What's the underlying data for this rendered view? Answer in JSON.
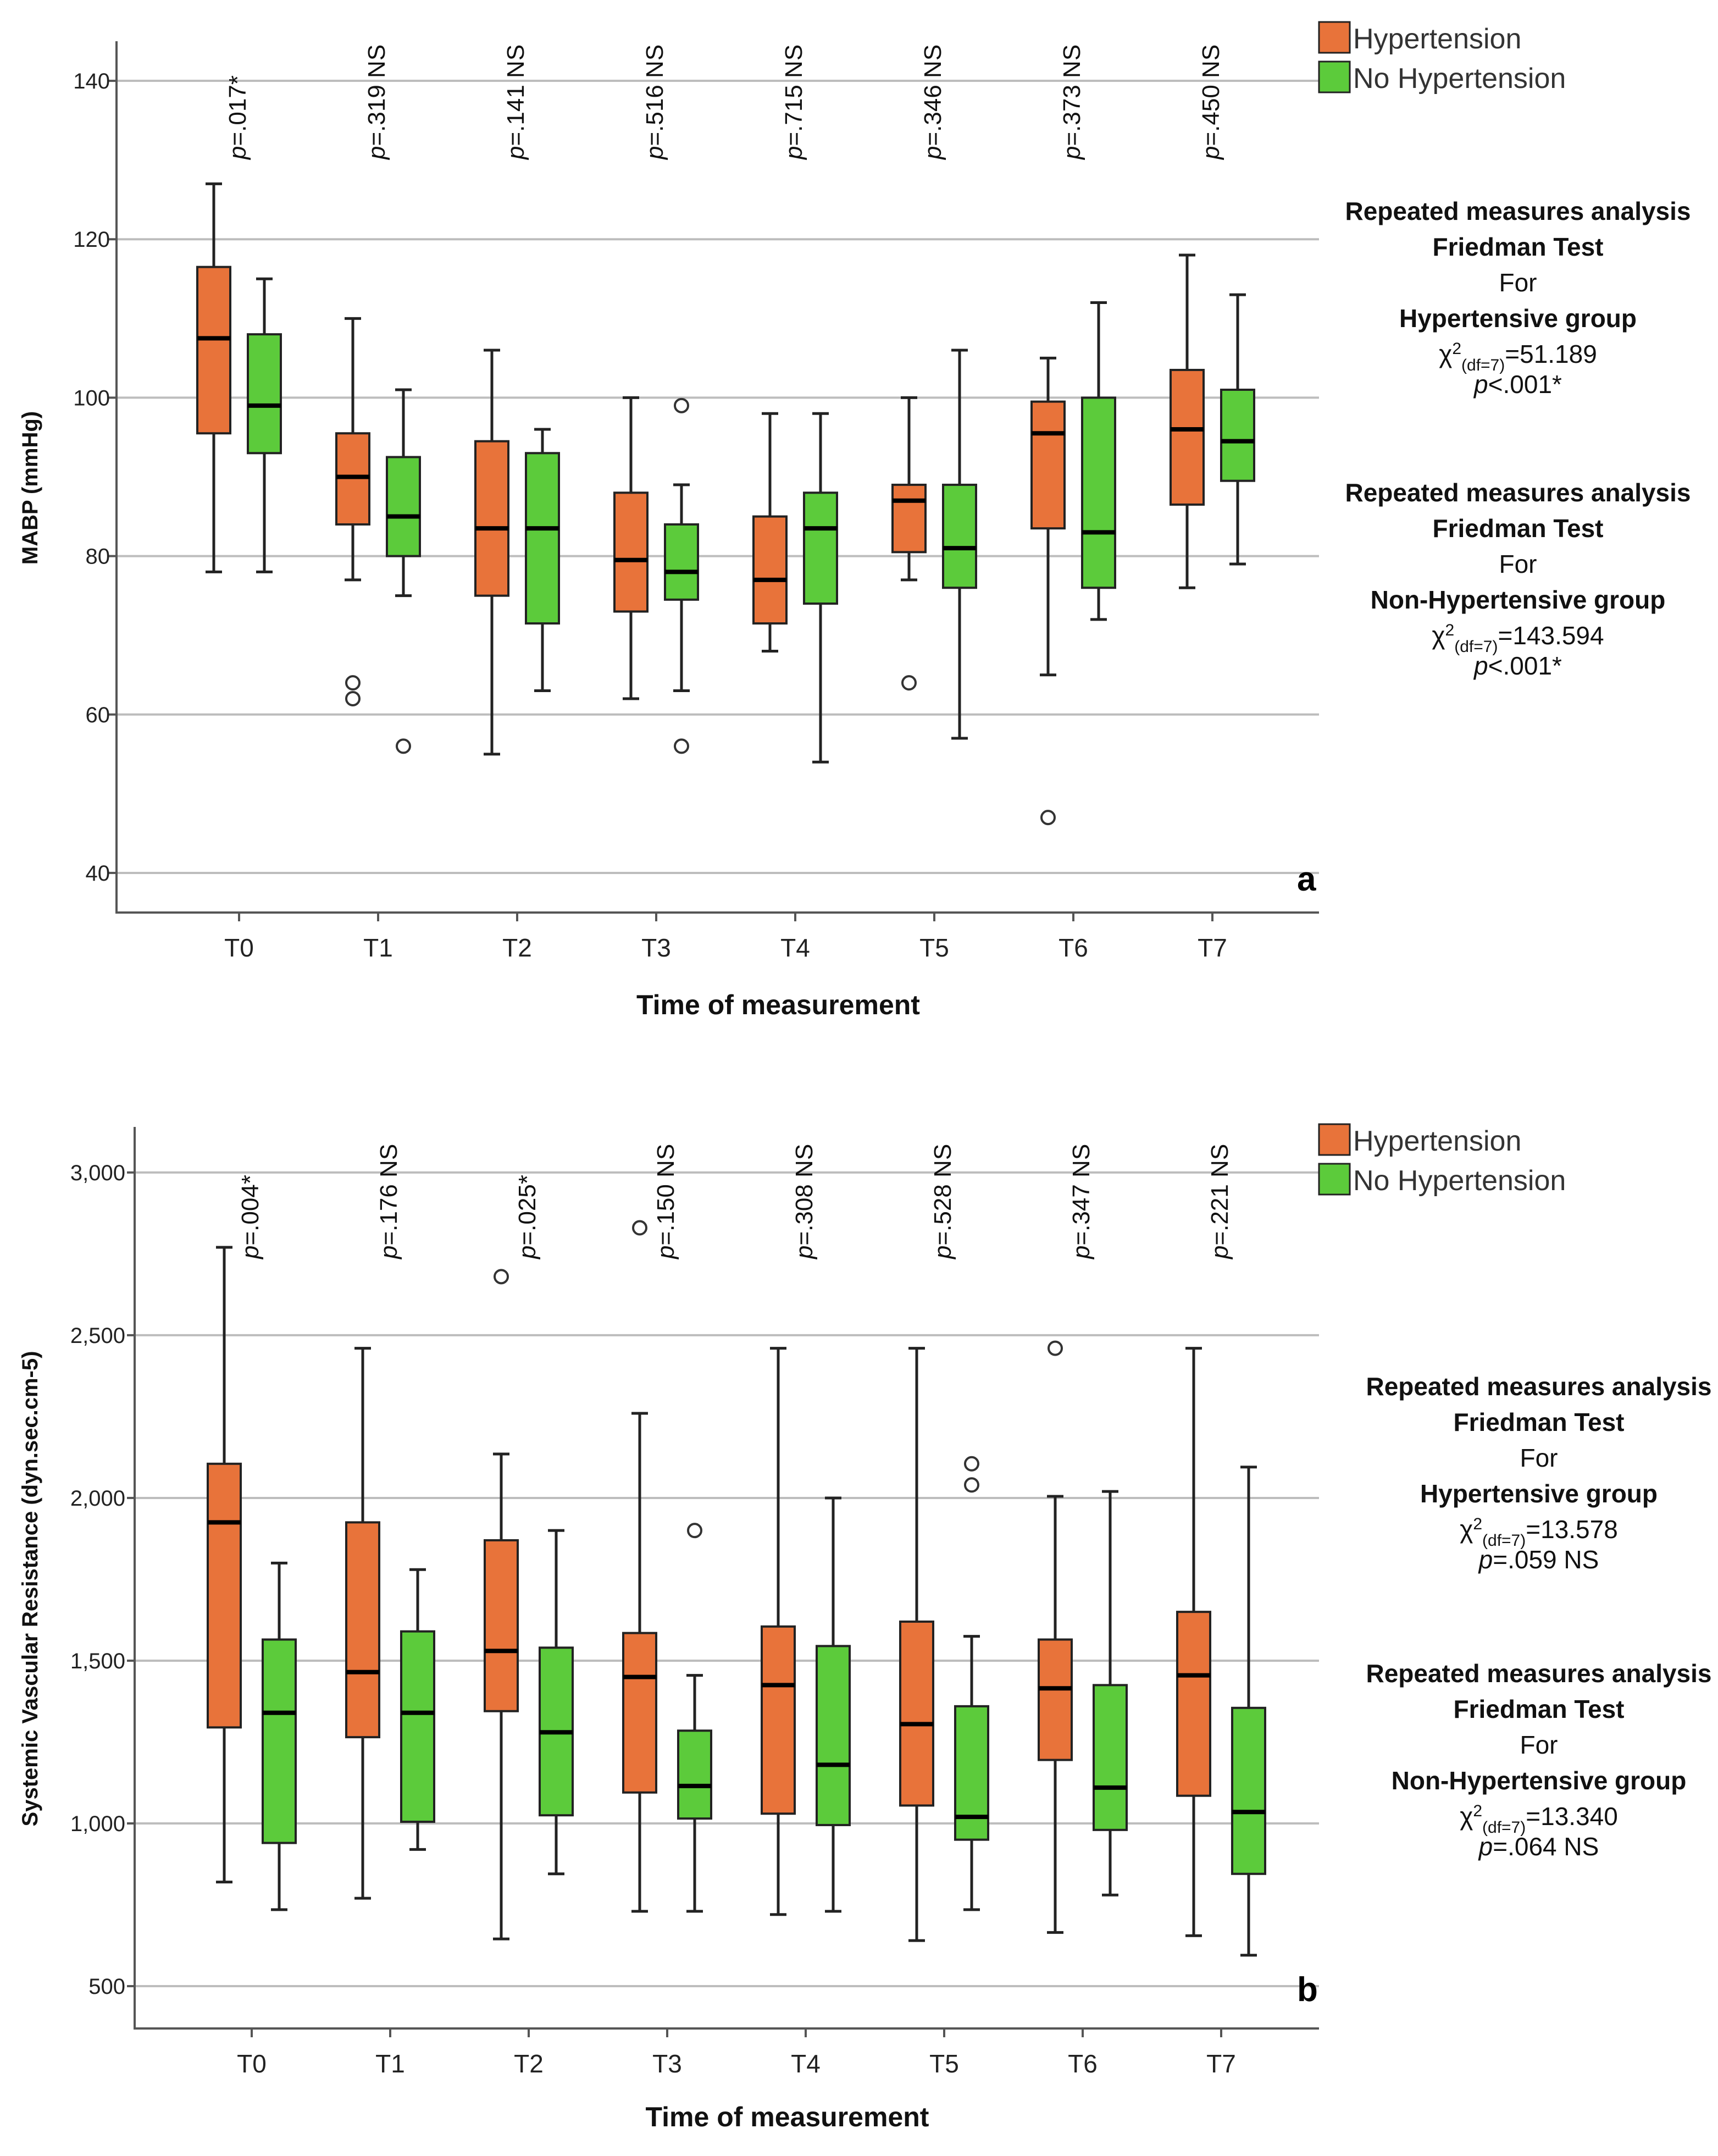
{
  "colors": {
    "hypertension": "#E8733A",
    "no_hypertension": "#5CCB3B",
    "box_stroke": "#222222",
    "grid": "#BDBDBD"
  },
  "legend": {
    "hypertension": "Hypertension",
    "no_hypertension": "No Hypertension"
  },
  "chart_data": [
    {
      "type": "box",
      "panel_label": "a",
      "xlabel": "Time of measurement",
      "ylabel": "MABP (mmHg)",
      "ylim": [
        35,
        145
      ],
      "yticks": [
        {
          "v": 40,
          "t": "40"
        },
        {
          "v": 60,
          "t": "60"
        },
        {
          "v": 80,
          "t": "80"
        },
        {
          "v": 100,
          "t": "100"
        },
        {
          "v": 120,
          "t": "120"
        },
        {
          "v": 140,
          "t": "140"
        }
      ],
      "categories": [
        "T0",
        "T1",
        "T2",
        "T3",
        "T4",
        "T5",
        "T6",
        "T7"
      ],
      "p_values": [
        "=.017*",
        "=.319 NS",
        "=.141 NS",
        "=.516 NS",
        "=.715 NS",
        "=.346 NS",
        "=.373 NS",
        "=.450 NS"
      ],
      "series": [
        {
          "name": "Hypertension",
          "boxes": [
            {
              "min": 78,
              "q1": 95.5,
              "median": 107.5,
              "q3": 116.5,
              "max": 127,
              "outliers": []
            },
            {
              "min": 77,
              "q1": 84,
              "median": 90,
              "q3": 95.5,
              "max": 110,
              "outliers": [
                62,
                64
              ]
            },
            {
              "min": 55,
              "q1": 75,
              "median": 83.5,
              "q3": 94.5,
              "max": 106,
              "outliers": []
            },
            {
              "min": 62,
              "q1": 73,
              "median": 79.5,
              "q3": 88,
              "max": 100,
              "outliers": []
            },
            {
              "min": 68,
              "q1": 71.5,
              "median": 77,
              "q3": 85,
              "max": 98,
              "outliers": []
            },
            {
              "min": 77,
              "q1": 80.5,
              "median": 87,
              "q3": 89,
              "max": 100,
              "outliers": [
                64
              ]
            },
            {
              "min": 65,
              "q1": 83.5,
              "median": 95.5,
              "q3": 99.5,
              "max": 105,
              "outliers": [
                47
              ]
            },
            {
              "min": 76,
              "q1": 86.5,
              "median": 96,
              "q3": 103.5,
              "max": 118,
              "outliers": []
            }
          ]
        },
        {
          "name": "No Hypertension",
          "boxes": [
            {
              "min": 78,
              "q1": 93,
              "median": 99,
              "q3": 108,
              "max": 115,
              "outliers": []
            },
            {
              "min": 75,
              "q1": 80,
              "median": 85,
              "q3": 92.5,
              "max": 101,
              "outliers": [
                56
              ]
            },
            {
              "min": 63,
              "q1": 71.5,
              "median": 83.5,
              "q3": 93,
              "max": 96,
              "outliers": []
            },
            {
              "min": 63,
              "q1": 74.5,
              "median": 78,
              "q3": 84,
              "max": 89,
              "outliers": [
                99,
                56
              ]
            },
            {
              "min": 54,
              "q1": 74,
              "median": 83.5,
              "q3": 88,
              "max": 98,
              "outliers": []
            },
            {
              "min": 57,
              "q1": 76,
              "median": 81,
              "q3": 89,
              "max": 106,
              "outliers": []
            },
            {
              "min": 72,
              "q1": 76,
              "median": 83,
              "q3": 100,
              "max": 112,
              "outliers": []
            },
            {
              "min": 79,
              "q1": 89.5,
              "median": 94.5,
              "q3": 101,
              "max": 113,
              "outliers": []
            }
          ]
        }
      ],
      "stats": [
        {
          "title1": "Repeated measures analysis",
          "title2": "Friedman Test",
          "for": "For",
          "group": "Hypertensive group",
          "chi_prefix": "χ",
          "chi_sup": "2",
          "chi_sub": "(df=7)",
          "chi_value": "=51.189",
          "p_prefix": "p",
          "p_value": "<.001*"
        },
        {
          "title1": "Repeated measures analysis",
          "title2": "Friedman Test",
          "for": "For",
          "group": "Non-Hypertensive group",
          "chi_prefix": "χ",
          "chi_sup": "2",
          "chi_sub": "(df=7)",
          "chi_value": "=143.594",
          "p_prefix": "p",
          "p_value": "<.001*"
        }
      ]
    },
    {
      "type": "box",
      "panel_label": "b",
      "xlabel": "Time of measurement",
      "ylabel": "Systemic Vascular Resistance (dyn.sec.cm-5)",
      "ylim": [
        370,
        3140
      ],
      "yticks": [
        {
          "v": 500,
          "t": "500"
        },
        {
          "v": 1000,
          "t": "1,000"
        },
        {
          "v": 1500,
          "t": "1,500"
        },
        {
          "v": 2000,
          "t": "2,000"
        },
        {
          "v": 2500,
          "t": "2,500"
        },
        {
          "v": 3000,
          "t": "3,000"
        }
      ],
      "categories": [
        "T0",
        "T1",
        "T2",
        "T3",
        "T4",
        "T5",
        "T6",
        "T7"
      ],
      "p_values": [
        "=.004*",
        "=.176 NS",
        "=.025*",
        "=.150 NS",
        "=.308 NS",
        "=.528 NS",
        "=.347 NS",
        "=.221 NS"
      ],
      "series": [
        {
          "name": "Hypertension",
          "boxes": [
            {
              "min": 820,
              "q1": 1295,
              "median": 1925,
              "q3": 2105,
              "max": 2770,
              "outliers": []
            },
            {
              "min": 770,
              "q1": 1265,
              "median": 1465,
              "q3": 1925,
              "max": 2460,
              "outliers": []
            },
            {
              "min": 645,
              "q1": 1345,
              "median": 1530,
              "q3": 1870,
              "max": 2135,
              "outliers": [
                2680
              ]
            },
            {
              "min": 730,
              "q1": 1095,
              "median": 1450,
              "q3": 1585,
              "max": 2260,
              "outliers": [
                2830
              ]
            },
            {
              "min": 720,
              "q1": 1030,
              "median": 1425,
              "q3": 1605,
              "max": 2460,
              "outliers": []
            },
            {
              "min": 640,
              "q1": 1055,
              "median": 1305,
              "q3": 1620,
              "max": 2460,
              "outliers": []
            },
            {
              "min": 665,
              "q1": 1195,
              "median": 1415,
              "q3": 1565,
              "max": 2005,
              "outliers": [
                2460
              ]
            },
            {
              "min": 655,
              "q1": 1085,
              "median": 1455,
              "q3": 1650,
              "max": 2460,
              "outliers": []
            }
          ]
        },
        {
          "name": "No Hypertension",
          "boxes": [
            {
              "min": 735,
              "q1": 940,
              "median": 1340,
              "q3": 1565,
              "max": 1800,
              "outliers": []
            },
            {
              "min": 920,
              "q1": 1005,
              "median": 1340,
              "q3": 1590,
              "max": 1780,
              "outliers": []
            },
            {
              "min": 845,
              "q1": 1025,
              "median": 1280,
              "q3": 1540,
              "max": 1900,
              "outliers": []
            },
            {
              "min": 730,
              "q1": 1015,
              "median": 1115,
              "q3": 1285,
              "max": 1455,
              "outliers": [
                1900
              ]
            },
            {
              "min": 730,
              "q1": 995,
              "median": 1180,
              "q3": 1545,
              "max": 2000,
              "outliers": []
            },
            {
              "min": 735,
              "q1": 950,
              "median": 1020,
              "q3": 1360,
              "max": 1575,
              "outliers": [
                2040,
                2105
              ]
            },
            {
              "min": 780,
              "q1": 980,
              "median": 1110,
              "q3": 1425,
              "max": 2020,
              "outliers": []
            },
            {
              "min": 595,
              "q1": 845,
              "median": 1035,
              "q3": 1355,
              "max": 2095,
              "outliers": []
            }
          ]
        }
      ],
      "stats": [
        {
          "title1": "Repeated measures analysis",
          "title2": "Friedman Test",
          "for": "For",
          "group": "Hypertensive group",
          "chi_prefix": "χ",
          "chi_sup": "2",
          "chi_sub": "(df=7)",
          "chi_value": "=13.578",
          "p_prefix": "p",
          "p_value": "=.059 NS"
        },
        {
          "title1": "Repeated measures analysis",
          "title2": "Friedman Test",
          "for": "For",
          "group": "Non-Hypertensive group",
          "chi_prefix": "χ",
          "chi_sup": "2",
          "chi_sub": "(df=7)",
          "chi_value": "=13.340",
          "p_prefix": "p",
          "p_value": "=.064 NS"
        }
      ]
    }
  ]
}
